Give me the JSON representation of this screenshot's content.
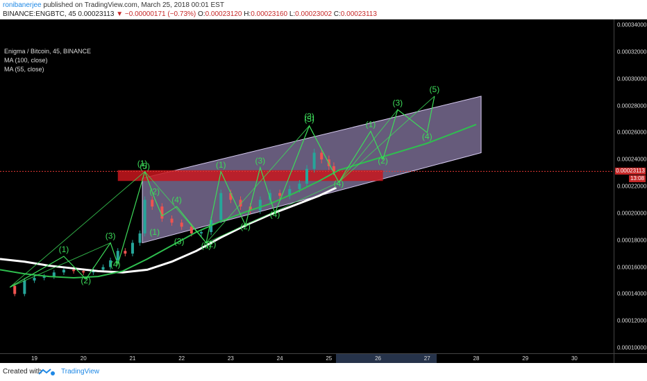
{
  "header": {
    "author": "ronibanerjee",
    "published": "published on TradingView.com, March 25, 2018 00:01 EST",
    "symbol": "BINANCE:ENGBTC, 45",
    "last": "0.00023113",
    "change": "▼ −0.00000171 (−0.73%)",
    "o_label": "O:",
    "o_value": "0.00023120",
    "h_label": "H:",
    "h_value": "0.00023160",
    "l_label": "L:",
    "l_value": "0.00023002",
    "c_label": "C:",
    "c_value": "0.00023113"
  },
  "legend": {
    "title": "Enigma / Bitcoin, 45, BINANCE",
    "ma1": "MA (100, close)",
    "ma2": "MA (55, close)"
  },
  "price_tag": "0.00023113",
  "time_tag": "13:08",
  "footer": {
    "created": "Created with",
    "brand": "TradingView"
  },
  "colors": {
    "background": "#000000",
    "candle_up": "#26a69a",
    "candle_down": "#ef5350",
    "ma100": "#ffffff",
    "ma55": "#2fbf4f",
    "wave": "#3ddc5a",
    "channel": "#b9a6e0",
    "resistance_zone": "#c8161d"
  },
  "chart_data": {
    "type": "candlestick",
    "x_ticks": [
      "19",
      "20",
      "21",
      "22",
      "23",
      "24",
      "25",
      "26",
      "27",
      "28",
      "29",
      "30"
    ],
    "y_ticks": [
      "0.00034000",
      "0.00032000",
      "0.00030000",
      "0.00028000",
      "0.00026000",
      "0.00024000",
      "0.00022000",
      "0.00020000",
      "0.00018000",
      "0.00016000",
      "0.00014000",
      "0.00012000",
      "0.00010000"
    ],
    "ylim": [
      0.0001,
      0.00034
    ],
    "xlim": [
      18.3,
      30.8
    ],
    "price_close": [
      0.000146,
      0.00014,
      0.00015,
      0.000152,
      0.000153,
      0.000156,
      0.000158,
      0.000157,
      0.000156,
      0.000158,
      0.00016,
      0.000165,
      0.000172,
      0.00017,
      0.000178,
      0.000185,
      0.00021,
      0.000205,
      0.000196,
      0.000193,
      0.00019,
      0.000185,
      0.000186,
      0.000195,
      0.000215,
      0.00021,
      0.000205,
      0.000202,
      0.00021,
      0.000215,
      0.000213,
      0.000218,
      0.000222,
      0.000233,
      0.000245,
      0.00024,
      0.000235,
      0.000231
    ],
    "price_x": [
      18.45,
      18.6,
      18.8,
      19.0,
      19.2,
      19.4,
      19.6,
      19.8,
      20.0,
      20.2,
      20.4,
      20.55,
      20.7,
      20.85,
      21.0,
      21.15,
      21.25,
      21.4,
      21.6,
      21.8,
      22.0,
      22.2,
      22.4,
      22.6,
      22.8,
      23.0,
      23.2,
      23.4,
      23.6,
      23.8,
      24.0,
      24.2,
      24.4,
      24.55,
      24.7,
      24.85,
      25.0,
      25.1
    ],
    "series": [
      {
        "name": "MA (100, close)",
        "x": [
          18.3,
          18.8,
          19.3,
          19.8,
          20.3,
          20.8,
          21.3,
          21.8,
          22.3,
          22.8,
          23.3,
          23.8,
          24.3,
          24.8,
          25.15
        ],
        "values": [
          0.000166,
          0.000164,
          0.000161,
          0.000159,
          0.000157,
          0.000156,
          0.000158,
          0.000164,
          0.000172,
          0.000182,
          0.000191,
          0.000199,
          0.000206,
          0.000213,
          0.000219
        ]
      },
      {
        "name": "MA (55, close)",
        "x": [
          18.3,
          18.8,
          19.3,
          19.8,
          20.3,
          20.8,
          21.3,
          21.8,
          22.3,
          22.8,
          23.3,
          23.8,
          24.3,
          24.8,
          25.2,
          27.0,
          28.0
        ],
        "values": [
          0.000158,
          0.000155,
          0.000153,
          0.000152,
          0.000153,
          0.000157,
          0.000166,
          0.000176,
          0.000186,
          0.000194,
          0.000201,
          0.000207,
          0.000215,
          0.000224,
          0.000232,
          0.000252,
          0.000266
        ]
      }
    ],
    "resistance_zone": {
      "y": [
        0.000224,
        0.000232
      ],
      "x": [
        20.7,
        26.1
      ]
    },
    "channel": {
      "lower": [
        [
          21.2,
          0.000178
        ],
        [
          28.1,
          0.000245
        ]
      ],
      "upper": [
        [
          21.2,
          0.000226
        ],
        [
          28.1,
          0.000287
        ]
      ]
    },
    "current_price_line": 0.00023113,
    "wave_labels": [
      {
        "t": "(1)",
        "x": 19.6,
        "y": 0.000171
      },
      {
        "t": "(2)",
        "x": 20.05,
        "y": 0.000148
      },
      {
        "t": "(3)",
        "x": 20.55,
        "y": 0.000181
      },
      {
        "t": "(4)",
        "x": 20.65,
        "y": 0.00016
      },
      {
        "t": "(1)",
        "x": 21.2,
        "y": 0.000235
      },
      {
        "t": "(5)",
        "x": 21.25,
        "y": 0.000233
      },
      {
        "t": "(2)",
        "x": 21.45,
        "y": 0.000214
      },
      {
        "t": "(4)",
        "x": 21.9,
        "y": 0.000208
      },
      {
        "t": "(1)",
        "x": 21.45,
        "y": 0.000184
      },
      {
        "t": "(3)",
        "x": 21.95,
        "y": 0.000177
      },
      {
        "t": "(5)",
        "x": 22.5,
        "y": 0.000174
      },
      {
        "t": "(2)",
        "x": 22.6,
        "y": 0.000175
      },
      {
        "t": "(1)",
        "x": 22.8,
        "y": 0.000234
      },
      {
        "t": "(3)",
        "x": 23.6,
        "y": 0.000237
      },
      {
        "t": "(2)",
        "x": 23.3,
        "y": 0.000188
      },
      {
        "t": "(4)",
        "x": 23.9,
        "y": 0.000197
      },
      {
        "t": "(3)",
        "x": 24.6,
        "y": 0.00027
      },
      {
        "t": "(5)",
        "x": 24.6,
        "y": 0.000268
      },
      {
        "t": "(4)",
        "x": 25.2,
        "y": 0.00022
      },
      {
        "t": "(1)",
        "x": 25.85,
        "y": 0.000264
      },
      {
        "t": "(2)",
        "x": 26.1,
        "y": 0.000237
      },
      {
        "t": "(3)",
        "x": 26.4,
        "y": 0.00028
      },
      {
        "t": "(4)",
        "x": 27.0,
        "y": 0.000255
      },
      {
        "t": "(5)",
        "x": 27.15,
        "y": 0.00029
      }
    ],
    "wave_path_1": [
      [
        18.5,
        0.000145
      ],
      [
        19.6,
        0.000168
      ],
      [
        20.05,
        0.000151
      ],
      [
        20.55,
        0.000178
      ],
      [
        20.7,
        0.000162
      ],
      [
        21.25,
        0.000231
      ]
    ],
    "wave_path_2": [
      [
        21.25,
        0.000231
      ],
      [
        21.45,
        0.000211
      ],
      [
        21.6,
        0.000198
      ],
      [
        21.9,
        0.000205
      ],
      [
        22.5,
        0.000178
      ],
      [
        22.8,
        0.000231
      ],
      [
        23.3,
        0.000191
      ],
      [
        23.6,
        0.000234
      ],
      [
        23.9,
        0.0002
      ],
      [
        24.6,
        0.000265
      ],
      [
        25.2,
        0.000223
      ]
    ],
    "wave_path_3": [
      [
        25.2,
        0.000223
      ],
      [
        25.85,
        0.000261
      ],
      [
        26.1,
        0.00024
      ],
      [
        26.4,
        0.000277
      ],
      [
        27.0,
        0.00026
      ],
      [
        27.15,
        0.000287
      ]
    ],
    "wave_fan": [
      [
        [
          18.5,
          0.000145
        ],
        [
          21.25,
          0.000231
        ]
      ],
      [
        [
          21.25,
          0.000231
        ],
        [
          22.5,
          0.000178
        ]
      ],
      [
        [
          22.5,
          0.000178
        ],
        [
          24.6,
          0.000265
        ]
      ],
      [
        [
          24.6,
          0.000265
        ],
        [
          25.2,
          0.000223
        ]
      ],
      [
        [
          25.2,
          0.000223
        ],
        [
          27.15,
          0.000287
        ]
      ],
      [
        [
          22.5,
          0.000178
        ],
        [
          25.2,
          0.000223
        ]
      ],
      [
        [
          18.5,
          0.000145
        ],
        [
          20.55,
          0.000178
        ]
      ],
      [
        [
          25.2,
          0.000223
        ],
        [
          26.4,
          0.000277
        ]
      ]
    ]
  }
}
